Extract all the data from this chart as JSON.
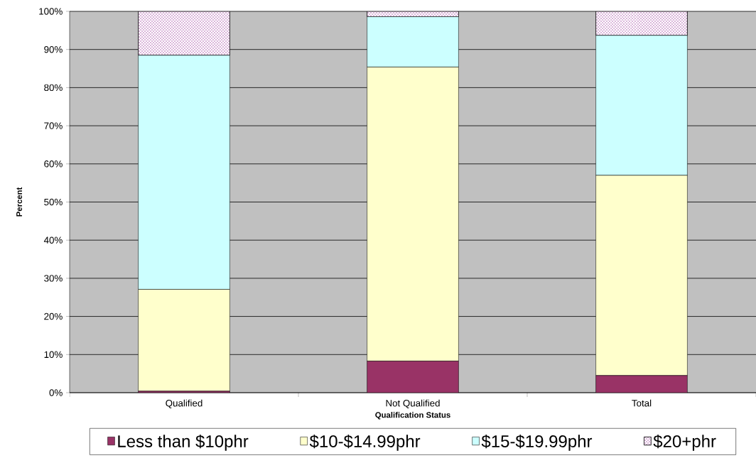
{
  "chart_data": {
    "type": "bar",
    "stacked": true,
    "xlabel": "Qualification Status",
    "ylabel": "Percent",
    "categories": [
      "Qualified",
      "Not Qualified",
      "Total"
    ],
    "series": [
      {
        "name": "Less than $10phr",
        "color": "#993366",
        "values": [
          0.4,
          8.3,
          4.5
        ]
      },
      {
        "name": "$10-$14.99phr",
        "color": "#ffffcc",
        "values": [
          26.7,
          77.1,
          52.5
        ]
      },
      {
        "name": "$15-$19.99phr",
        "color": "#ccffff",
        "values": [
          61.4,
          13.2,
          36.7
        ]
      },
      {
        "name": "$20+phr",
        "color": "#ffffff",
        "values": [
          11.5,
          1.4,
          6.3
        ]
      }
    ],
    "ylim": [
      0,
      100
    ],
    "yticks": [
      {
        "value": 0,
        "label": "0%"
      },
      {
        "value": 10,
        "label": "10%"
      },
      {
        "value": 20,
        "label": "20%"
      },
      {
        "value": 30,
        "label": "30%"
      },
      {
        "value": 40,
        "label": "40%"
      },
      {
        "value": 50,
        "label": "50%"
      },
      {
        "value": 60,
        "label": "60%"
      },
      {
        "value": 70,
        "label": "70%"
      },
      {
        "value": 80,
        "label": "80%"
      },
      {
        "value": 90,
        "label": "90%"
      },
      {
        "value": 100,
        "label": "100%"
      }
    ],
    "grid": "y",
    "legend": "bottom"
  }
}
